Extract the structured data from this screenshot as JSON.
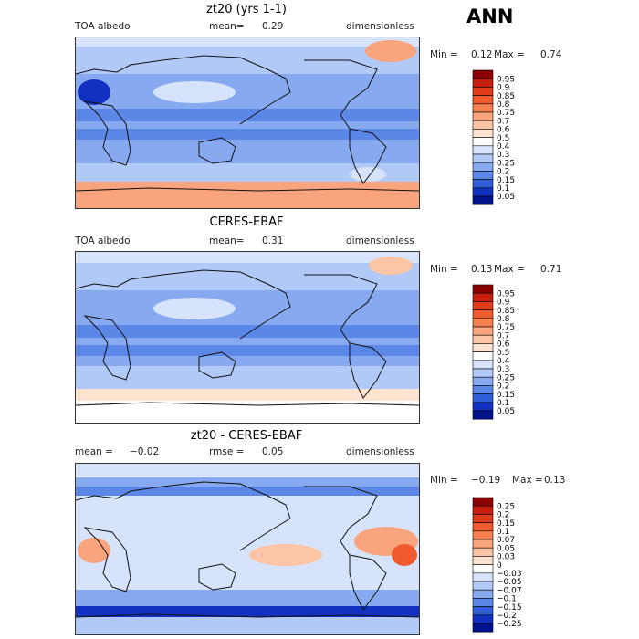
{
  "season": "ANN",
  "chart_data": [
    {
      "type": "heatmap",
      "title": "zt20 (yrs 1-1)",
      "variable": "TOA albedo",
      "mean_label": "mean=",
      "mean": "0.29",
      "units": "dimensionless",
      "min_label": "Min =",
      "min": "0.12",
      "max_label": "Max =",
      "max": "0.74",
      "colorbar": {
        "levels": [
          "0.95",
          "0.9",
          "0.85",
          "0.8",
          "0.75",
          "0.7",
          "0.6",
          "0.5",
          "0.4",
          "0.3",
          "0.25",
          "0.2",
          "0.15",
          "0.1",
          "0.05"
        ],
        "colors": [
          "#8b0000",
          "#c81e0e",
          "#e13b1b",
          "#ef5a2e",
          "#f6804f",
          "#f9a47d",
          "#fbc5a6",
          "#fde3d0",
          "#ffffff",
          "#d6e3fb",
          "#b1c9f6",
          "#86a9ef",
          "#5b87e6",
          "#2f5ed8",
          "#1231c0",
          "#00128c"
        ]
      },
      "color_scale": {
        "min": 0.05,
        "max": 0.95
      }
    },
    {
      "type": "heatmap",
      "title": "CERES-EBAF",
      "variable": "TOA albedo",
      "mean_label": "mean=",
      "mean": "0.31",
      "units": "dimensionless",
      "min_label": "Min =",
      "min": "0.13",
      "max_label": "Max =",
      "max": "0.71",
      "colorbar": {
        "levels": [
          "0.95",
          "0.9",
          "0.85",
          "0.8",
          "0.75",
          "0.7",
          "0.6",
          "0.5",
          "0.4",
          "0.3",
          "0.25",
          "0.2",
          "0.15",
          "0.1",
          "0.05"
        ],
        "colors": [
          "#8b0000",
          "#c81e0e",
          "#e13b1b",
          "#ef5a2e",
          "#f6804f",
          "#f9a47d",
          "#fbc5a6",
          "#fde3d0",
          "#ffffff",
          "#d6e3fb",
          "#b1c9f6",
          "#86a9ef",
          "#5b87e6",
          "#2f5ed8",
          "#1231c0",
          "#00128c"
        ]
      },
      "color_scale": {
        "min": 0.05,
        "max": 0.95
      }
    },
    {
      "type": "heatmap",
      "title": "zt20 - CERES-EBAF",
      "mean_label": "mean =",
      "mean": "−0.02",
      "rmse_label": "rmse =",
      "rmse": "0.05",
      "units": "dimensionless",
      "min_label": "Min =",
      "min": "−0.19",
      "max_label": "Max =",
      "max": "0.13",
      "colorbar": {
        "levels": [
          "0.25",
          "0.2",
          "0.15",
          "0.1",
          "0.07",
          "0.05",
          "0.03",
          "0",
          "−0.03",
          "−0.05",
          "−0.07",
          "−0.1",
          "−0.15",
          "−0.2",
          "−0.25"
        ],
        "colors": [
          "#8b0000",
          "#c81e0e",
          "#e13b1b",
          "#ef5a2e",
          "#f6804f",
          "#f9a47d",
          "#fbc5a6",
          "#fde3d0",
          "#ffffff",
          "#d6e3fb",
          "#b1c9f6",
          "#86a9ef",
          "#5b87e6",
          "#2f5ed8",
          "#1231c0",
          "#00128c"
        ]
      },
      "color_scale": {
        "min": -0.25,
        "max": 0.25
      }
    }
  ]
}
